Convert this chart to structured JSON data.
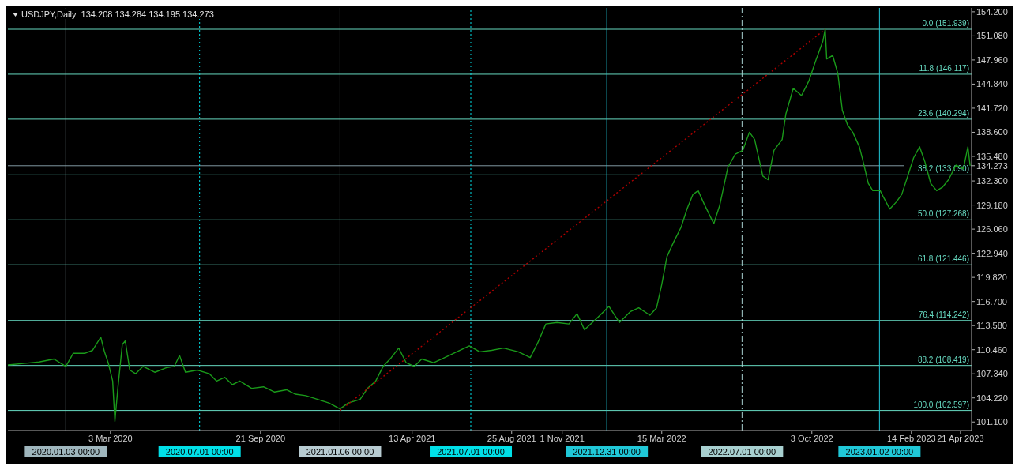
{
  "chart_data": {
    "type": "line",
    "title": "USDJPY,Daily  134.208 134.284 134.195 134.273",
    "x": [
      "2019-10-17",
      "2019-11-07",
      "2019-11-28",
      "2019-12-18",
      "2020-01-03",
      "2020-01-13",
      "2020-01-29",
      "2020-02-08",
      "2020-02-19",
      "2020-02-24",
      "2020-02-29",
      "2020-03-06",
      "2020-03-09",
      "2020-03-13",
      "2020-03-19",
      "2020-03-23",
      "2020-03-29",
      "2020-04-06",
      "2020-04-16",
      "2020-05-02",
      "2020-05-17",
      "2020-05-28",
      "2020-06-04",
      "2020-06-12",
      "2020-06-28",
      "2020-07-14",
      "2020-07-24",
      "2020-08-04",
      "2020-08-14",
      "2020-08-24",
      "2020-09-09",
      "2020-09-25",
      "2020-10-10",
      "2020-10-26",
      "2020-11-07",
      "2020-11-21",
      "2020-12-07",
      "2020-12-22",
      "2021-01-06",
      "2021-01-17",
      "2021-02-02",
      "2021-02-12",
      "2021-02-23",
      "2021-03-05",
      "2021-03-16",
      "2021-03-26",
      "2021-04-05",
      "2021-04-16",
      "2021-04-26",
      "2021-05-12",
      "2021-05-27",
      "2021-06-12",
      "2021-06-29",
      "2021-07-13",
      "2021-07-29",
      "2021-08-14",
      "2021-09-03",
      "2021-09-19",
      "2021-09-29",
      "2021-10-10",
      "2021-10-25",
      "2021-11-10",
      "2021-11-21",
      "2021-12-01",
      "2021-12-17",
      "2022-01-03",
      "2022-01-17",
      "2022-02-01",
      "2022-02-12",
      "2022-02-27",
      "2022-03-08",
      "2022-03-15",
      "2022-03-22",
      "2022-03-31",
      "2022-04-10",
      "2022-04-18",
      "2022-04-26",
      "2022-05-03",
      "2022-05-11",
      "2022-05-24",
      "2022-06-01",
      "2022-06-12",
      "2022-06-22",
      "2022-07-02",
      "2022-07-11",
      "2022-07-18",
      "2022-07-29",
      "2022-08-05",
      "2022-08-13",
      "2022-08-24",
      "2022-08-29",
      "2022-09-08",
      "2022-09-19",
      "2022-09-29",
      "2022-10-09",
      "2022-10-18",
      "2022-10-21",
      "2022-10-23",
      "2022-10-31",
      "2022-11-07",
      "2022-11-13",
      "2022-11-20",
      "2022-11-27",
      "2022-12-06",
      "2022-12-11",
      "2022-12-18",
      "2022-12-24",
      "2023-01-03",
      "2023-01-08",
      "2023-01-16",
      "2023-01-25",
      "2023-02-01",
      "2023-02-09",
      "2023-02-17",
      "2023-02-25",
      "2023-03-04",
      "2023-03-12",
      "2023-03-20",
      "2023-03-28",
      "2023-04-05",
      "2023-04-15",
      "2023-04-25",
      "2023-05-01",
      "2023-05-04"
    ],
    "series": [
      {
        "color": "#1a9a1a",
        "values": [
          108.49,
          108.68,
          108.87,
          109.25,
          108.3,
          110.0,
          110.0,
          110.38,
          112.09,
          110.19,
          108.77,
          106.4,
          101.19,
          105.46,
          111.14,
          111.61,
          107.82,
          107.35,
          108.3,
          107.54,
          108.11,
          108.3,
          109.72,
          107.54,
          107.82,
          107.35,
          106.4,
          106.88,
          105.93,
          106.4,
          105.46,
          105.65,
          104.98,
          105.27,
          104.7,
          104.51,
          104.03,
          103.56,
          102.8,
          103.56,
          104.03,
          105.46,
          106.4,
          108.3,
          109.44,
          110.67,
          108.77,
          108.3,
          109.25,
          108.77,
          109.44,
          110.19,
          110.95,
          110.19,
          110.38,
          110.67,
          110.19,
          109.44,
          111.33,
          113.79,
          113.98,
          113.79,
          115.12,
          113.04,
          114.46,
          116.07,
          113.98,
          115.41,
          115.88,
          114.93,
          115.88,
          118.91,
          122.51,
          124.4,
          126.3,
          128.67,
          130.56,
          131.04,
          129.33,
          126.77,
          129.14,
          134.07,
          135.77,
          136.25,
          138.61,
          137.67,
          132.93,
          132.46,
          136.25,
          137.67,
          140.98,
          144.3,
          143.35,
          145.25,
          148.09,
          150.46,
          151.939,
          148.09,
          148.56,
          146.19,
          141.46,
          139.56,
          138.61,
          136.72,
          134.82,
          131.98,
          131.04,
          131.04,
          130.09,
          128.67,
          129.61,
          130.56,
          132.93,
          135.3,
          136.72,
          134.82,
          131.98,
          131.04,
          131.51,
          132.46,
          134.35,
          133.88,
          136.72,
          134.273
        ]
      },
      {
        "color": "#b00000",
        "line_style": "dotted",
        "x": [
          "2021-01-06",
          "2022-10-21"
        ],
        "values": [
          102.597,
          151.939
        ]
      }
    ],
    "marker": "none",
    "xlim": [
      "2019-10-17",
      "2023-05-06"
    ],
    "xticks": [
      {
        "value": "2020-03-03",
        "label": "3 Mar 2020"
      },
      {
        "value": "2020-09-21",
        "label": "21 Sep 2020"
      },
      {
        "value": "2021-04-13",
        "label": "13 Apr 2021"
      },
      {
        "value": "2021-08-25",
        "label": "25 Aug 2021"
      },
      {
        "value": "2021-11-01",
        "label": "1 Nov 2021"
      },
      {
        "value": "2022-03-15",
        "label": "15 Mar 2022"
      },
      {
        "value": "2022-10-03",
        "label": "3 Oct 2022"
      },
      {
        "value": "2023-02-14",
        "label": "14 Feb 2023"
      },
      {
        "value": "2023-04-21",
        "label": "21 Apr 2023"
      }
    ],
    "ylim": [
      100.0,
      154.7
    ],
    "yticks": [
      {
        "value": 101.1,
        "label": "101.100"
      },
      {
        "value": 104.22,
        "label": "104.220"
      },
      {
        "value": 107.34,
        "label": "107.340"
      },
      {
        "value": 110.46,
        "label": "110.460"
      },
      {
        "value": 113.58,
        "label": "113.580"
      },
      {
        "value": 116.7,
        "label": "116.700"
      },
      {
        "value": 119.82,
        "label": "119.820"
      },
      {
        "value": 122.94,
        "label": "122.940"
      },
      {
        "value": 126.06,
        "label": "126.060"
      },
      {
        "value": 129.18,
        "label": "129.180"
      },
      {
        "value": 132.3,
        "label": "132.300"
      },
      {
        "value": 134.273,
        "label": "134.273"
      },
      {
        "value": 135.48,
        "label": "135.480"
      },
      {
        "value": 138.6,
        "label": "138.600"
      },
      {
        "value": 141.72,
        "label": "141.720"
      },
      {
        "value": 144.84,
        "label": "144.840"
      },
      {
        "value": 147.96,
        "label": "147.960"
      },
      {
        "value": 151.08,
        "label": "151.080"
      },
      {
        "value": 154.2,
        "label": "154.200"
      }
    ],
    "ref_lines": [
      {
        "axis": "y",
        "value": 134.273,
        "color": "#7f97a0"
      },
      {
        "axis": "y",
        "value": 151.939,
        "label": "0.0 (151.939)",
        "color": "#66d9c0"
      },
      {
        "axis": "y",
        "value": 146.117,
        "label": "11.8 (146.117)",
        "color": "#66d9c0"
      },
      {
        "axis": "y",
        "value": 140.294,
        "label": "23.6 (140.294)",
        "color": "#66d9c0"
      },
      {
        "axis": "y",
        "value": 133.09,
        "label": "38.2 (133.090)",
        "color": "#66d9c0"
      },
      {
        "axis": "y",
        "value": 127.268,
        "label": "50.0 (127.268)",
        "color": "#66d9c0"
      },
      {
        "axis": "y",
        "value": 121.446,
        "label": "61.8 (121.446)",
        "color": "#66d9c0"
      },
      {
        "axis": "y",
        "value": 114.242,
        "label": "76.4 (114.242)",
        "color": "#66d9c0"
      },
      {
        "axis": "y",
        "value": 108.419,
        "label": "88.2 (108.419)",
        "color": "#66d9c0"
      },
      {
        "axis": "y",
        "value": 102.597,
        "label": "100.0 (102.597)",
        "color": "#66d9c0"
      },
      {
        "axis": "x",
        "value": "2020-01-03",
        "label": "2020.01.03 00:00",
        "color": "#9fb6bd"
      },
      {
        "axis": "x",
        "value": "2020-07-01",
        "label": "2020.07.01 00:00",
        "color": "#00e0e8",
        "line_style": "dotted"
      },
      {
        "axis": "x",
        "value": "2021-01-06",
        "label": "2021.01.06 00:00",
        "color": "#b8ccd2"
      },
      {
        "axis": "x",
        "value": "2021-07-01",
        "label": "2021.07.01 00:00",
        "color": "#00e0e8",
        "line_style": "dotted"
      },
      {
        "axis": "x",
        "value": "2021-12-31",
        "label": "2021.12.31 00:00",
        "color": "#20c8d8"
      },
      {
        "axis": "x",
        "value": "2022-07-01",
        "label": "2022.07.01 00:00",
        "color": "#a8d0d0",
        "line_style": "dashed"
      },
      {
        "axis": "x",
        "value": "2023-01-02",
        "label": "2023.01.02 00:00",
        "color": "#20c8d8"
      }
    ]
  }
}
